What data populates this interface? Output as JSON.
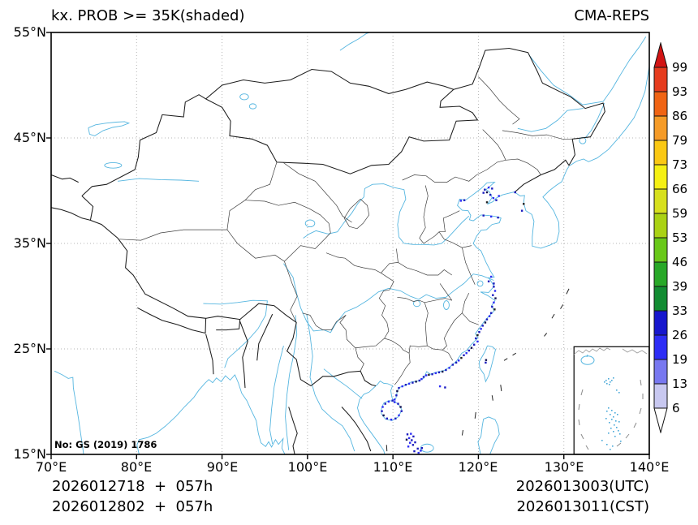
{
  "header": {
    "title_left": "kx. PROB >= 35K(shaded)",
    "title_right": "CMA-REPS"
  },
  "axes": {
    "x_ticks": [
      "70°E",
      "80°E",
      "90°E",
      "100°E",
      "110°E",
      "120°E",
      "130°E",
      "140°E"
    ],
    "y_ticks": [
      "55°N",
      "45°N",
      "35°N",
      "25°N",
      "15°N"
    ]
  },
  "map": {
    "license_label": "No: GS (2019) 1786"
  },
  "footer": {
    "init_line1": "2026012718  +  057h",
    "init_line2": "2026012802  +  057h",
    "valid_line1": "2026013003(UTC)",
    "valid_line2": "2026013011(CST)"
  },
  "chart_data": {
    "type": "heatmap",
    "title": "kx. PROB >= 35K(shaded)",
    "model": "CMA-REPS",
    "extent": {
      "lon_min": 70,
      "lon_max": 140,
      "lat_min": 15,
      "lat_max": 55
    },
    "x_ticks_deg": [
      70,
      80,
      90,
      100,
      110,
      120,
      130,
      140
    ],
    "y_ticks_deg": [
      15,
      25,
      35,
      45,
      55
    ],
    "grid_lon_deg": [
      80,
      90,
      100,
      110,
      120,
      130
    ],
    "grid_lat_deg": [
      25,
      35,
      45
    ],
    "colorbar": {
      "levels": [
        6,
        13,
        19,
        26,
        33,
        39,
        46,
        53,
        59,
        66,
        73,
        79,
        86,
        93,
        99
      ],
      "segment_colors_bottom_to_top": [
        "#c8c8f0",
        "#7878f0",
        "#2d2df5",
        "#1717cd",
        "#128c32",
        "#28a828",
        "#69c819",
        "#aad214",
        "#d7e01e",
        "#f5f014",
        "#fac814",
        "#f59b28",
        "#f06414",
        "#e63c1e"
      ],
      "under_color": "#ffffff",
      "over_color": "#d21414"
    },
    "speck_palette": [
      "#1a1abe",
      "#2d2df5",
      "#10104f",
      "#222222"
    ],
    "shaded_points": [
      [
        121.8,
        30.9,
        0
      ],
      [
        121.95,
        30.5,
        1
      ],
      [
        121.7,
        30.1,
        0
      ],
      [
        122.0,
        29.8,
        2
      ],
      [
        121.8,
        29.4,
        1
      ],
      [
        121.6,
        29.0,
        0
      ],
      [
        121.9,
        28.75,
        3
      ],
      [
        121.5,
        28.4,
        0
      ],
      [
        121.3,
        28.1,
        1
      ],
      [
        121.0,
        27.8,
        0
      ],
      [
        120.8,
        27.5,
        2
      ],
      [
        120.5,
        27.2,
        0
      ],
      [
        120.3,
        26.9,
        1
      ],
      [
        120.1,
        26.6,
        0
      ],
      [
        119.9,
        26.3,
        3
      ],
      [
        119.7,
        26.0,
        0
      ],
      [
        119.9,
        25.7,
        1
      ],
      [
        119.5,
        25.4,
        0
      ],
      [
        119.2,
        25.1,
        2
      ],
      [
        118.9,
        24.85,
        0
      ],
      [
        118.6,
        24.6,
        1
      ],
      [
        118.3,
        24.4,
        0
      ],
      [
        118.0,
        24.15,
        3
      ],
      [
        117.7,
        23.9,
        1
      ],
      [
        117.4,
        23.7,
        0
      ],
      [
        117.0,
        23.5,
        0
      ],
      [
        116.6,
        23.2,
        1
      ],
      [
        116.2,
        23.0,
        0
      ],
      [
        115.8,
        22.85,
        2
      ],
      [
        115.4,
        22.78,
        0
      ],
      [
        115.0,
        22.7,
        1
      ],
      [
        114.6,
        22.6,
        0
      ],
      [
        114.2,
        22.55,
        3
      ],
      [
        113.9,
        22.5,
        1
      ],
      [
        113.6,
        22.35,
        0
      ],
      [
        113.35,
        22.15,
        1
      ],
      [
        113.1,
        22.0,
        0
      ],
      [
        112.7,
        21.9,
        2
      ],
      [
        112.3,
        21.8,
        0
      ],
      [
        111.9,
        21.7,
        1
      ],
      [
        111.5,
        21.6,
        0
      ],
      [
        111.1,
        21.45,
        1
      ],
      [
        110.7,
        21.3,
        0
      ],
      [
        110.5,
        21.0,
        2
      ],
      [
        110.4,
        20.6,
        0
      ],
      [
        110.2,
        20.2,
        1
      ],
      [
        109.95,
        20.1,
        0
      ],
      [
        110.2,
        19.95,
        1
      ],
      [
        110.6,
        19.8,
        0
      ],
      [
        110.9,
        19.5,
        2
      ],
      [
        111.0,
        19.1,
        0
      ],
      [
        110.7,
        18.7,
        1
      ],
      [
        110.3,
        18.4,
        0
      ],
      [
        109.8,
        18.3,
        1
      ],
      [
        109.3,
        18.4,
        0
      ],
      [
        108.9,
        18.7,
        2
      ],
      [
        108.7,
        19.1,
        0
      ],
      [
        108.8,
        19.5,
        1
      ],
      [
        109.1,
        19.8,
        0
      ],
      [
        109.5,
        20.0,
        1
      ],
      [
        120.75,
        40.1,
        0
      ],
      [
        121.2,
        40.3,
        1
      ],
      [
        121.6,
        40.2,
        0
      ],
      [
        121.0,
        39.85,
        2
      ],
      [
        121.4,
        39.6,
        0
      ],
      [
        121.75,
        39.3,
        1
      ],
      [
        122.1,
        39.1,
        0
      ],
      [
        122.4,
        39.5,
        1
      ],
      [
        120.6,
        39.8,
        0
      ],
      [
        121.0,
        38.9,
        3
      ],
      [
        117.95,
        39.05,
        1
      ],
      [
        118.35,
        39.1,
        0
      ],
      [
        120.6,
        37.65,
        0
      ],
      [
        121.5,
        37.55,
        1
      ],
      [
        122.3,
        37.45,
        0
      ],
      [
        121.5,
        31.85,
        1
      ],
      [
        121.2,
        31.4,
        0
      ],
      [
        121.8,
        31.2,
        0
      ],
      [
        120.9,
        23.95,
        2
      ],
      [
        120.85,
        23.7,
        0
      ],
      [
        115.5,
        21.45,
        1
      ],
      [
        116.1,
        21.35,
        0
      ],
      [
        124.3,
        39.85,
        0
      ],
      [
        125.3,
        38.75,
        3
      ],
      [
        125.1,
        38.1,
        0
      ],
      [
        111.7,
        16.9,
        0
      ],
      [
        112.1,
        16.95,
        1
      ],
      [
        112.4,
        16.7,
        0
      ],
      [
        111.9,
        16.55,
        1
      ],
      [
        112.2,
        16.35,
        0
      ],
      [
        111.6,
        16.4,
        2
      ],
      [
        112.6,
        16.15,
        0
      ],
      [
        112.0,
        16.1,
        1
      ],
      [
        112.35,
        15.9,
        0
      ],
      [
        111.8,
        15.75,
        1
      ],
      [
        112.9,
        15.55,
        0
      ],
      [
        113.25,
        15.35,
        1
      ],
      [
        112.5,
        15.3,
        0
      ],
      [
        113.0,
        15.15,
        1
      ],
      [
        113.4,
        15.6,
        0
      ]
    ]
  }
}
